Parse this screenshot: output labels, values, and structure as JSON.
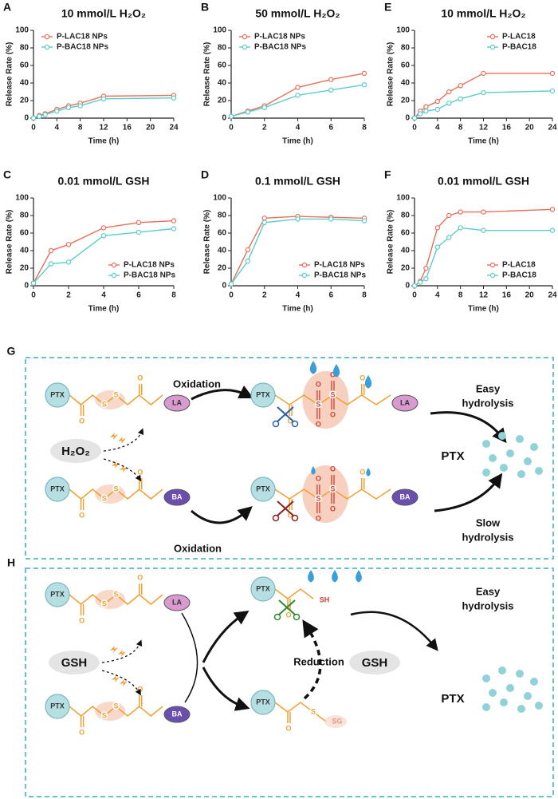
{
  "chart_data": [
    {
      "type": "line",
      "label": "A",
      "title": "10 mmol/L H₂O₂",
      "xlabel": "Time (h)",
      "ylabel": "Release Rate (%)",
      "x": [
        0,
        1,
        2,
        4,
        6,
        8,
        12,
        24
      ],
      "xlim": [
        0,
        24
      ],
      "xticks": [
        0,
        4,
        8,
        12,
        16,
        20,
        24
      ],
      "ylim": [
        0,
        100
      ],
      "yticks": [
        0,
        20,
        40,
        60,
        80,
        100
      ],
      "legend": "upper left",
      "series": [
        {
          "name": "P-LAC18 NPs",
          "color": "#e8705a",
          "values": [
            0,
            3,
            5,
            10,
            14,
            17,
            25,
            26
          ]
        },
        {
          "name": "P-BAC18 NPs",
          "color": "#5ccccc",
          "values": [
            0,
            2,
            4,
            8,
            12,
            14,
            22,
            23
          ]
        }
      ]
    },
    {
      "type": "line",
      "label": "B",
      "title": "50 mmol/L H₂O₂",
      "xlabel": "Time (h)",
      "ylabel": "Release Rate (%)",
      "x": [
        0,
        1,
        2,
        4,
        6,
        8
      ],
      "xlim": [
        0,
        8
      ],
      "xticks": [
        0,
        2,
        4,
        6,
        8
      ],
      "ylim": [
        0,
        100
      ],
      "yticks": [
        0,
        20,
        40,
        60,
        80,
        100
      ],
      "legend": "upper left",
      "series": [
        {
          "name": "P-LAC18 NPs",
          "color": "#e8705a",
          "values": [
            2,
            8,
            14,
            35,
            44,
            51
          ]
        },
        {
          "name": "P-BAC18 NPs",
          "color": "#5ccccc",
          "values": [
            2,
            7,
            12,
            26,
            32,
            38
          ]
        }
      ]
    },
    {
      "type": "line",
      "label": "E",
      "title": "10 mmol/L H₂O₂",
      "xlabel": "Time (h)",
      "ylabel": "Release Rate (%)",
      "x": [
        0,
        1,
        2,
        4,
        6,
        8,
        12,
        24
      ],
      "xlim": [
        0,
        24
      ],
      "xticks": [
        0,
        4,
        8,
        12,
        16,
        20,
        24
      ],
      "ylim": [
        0,
        100
      ],
      "yticks": [
        0,
        20,
        40,
        60,
        80,
        100
      ],
      "legend": "upper right",
      "series": [
        {
          "name": "P-LAC18",
          "color": "#e8705a",
          "values": [
            0,
            8,
            13,
            19,
            30,
            37,
            51,
            51
          ]
        },
        {
          "name": "P-BAC18",
          "color": "#5ccccc",
          "values": [
            0,
            5,
            8,
            10,
            17,
            22,
            29,
            31
          ]
        }
      ]
    },
    {
      "type": "line",
      "label": "C",
      "title": "0.01 mmol/L GSH",
      "xlabel": "Time (h)",
      "ylabel": "Release Rate (%)",
      "x": [
        0,
        1,
        2,
        4,
        6,
        8
      ],
      "xlim": [
        0,
        8
      ],
      "xticks": [
        0,
        2,
        4,
        6,
        8
      ],
      "ylim": [
        0,
        100
      ],
      "yticks": [
        0,
        20,
        40,
        60,
        80,
        100
      ],
      "legend": "lower right",
      "series": [
        {
          "name": "P-LAC18 NPs",
          "color": "#e8705a",
          "values": [
            3,
            40,
            47,
            66,
            72,
            74
          ]
        },
        {
          "name": "P-BAC18 NPs",
          "color": "#5ccccc",
          "values": [
            3,
            25,
            27,
            57,
            61,
            65
          ]
        }
      ]
    },
    {
      "type": "line",
      "label": "D",
      "title": "0.1 mmol/L GSH",
      "xlabel": "Time (h)",
      "ylabel": "Release Rate (%)",
      "x": [
        0,
        1,
        2,
        4,
        6,
        8
      ],
      "xlim": [
        0,
        8
      ],
      "xticks": [
        0,
        2,
        4,
        6,
        8
      ],
      "ylim": [
        0,
        100
      ],
      "yticks": [
        0,
        20,
        40,
        60,
        80,
        100
      ],
      "legend": "lower right",
      "series": [
        {
          "name": "P-LAC18 NPs",
          "color": "#e8705a",
          "values": [
            2,
            41,
            77,
            79,
            78,
            77
          ]
        },
        {
          "name": "P-BAC18 NPs",
          "color": "#5ccccc",
          "values": [
            2,
            28,
            72,
            76,
            76,
            74
          ]
        }
      ]
    },
    {
      "type": "line",
      "label": "F",
      "title": "0.01 mmol/L GSH",
      "xlabel": "Time (h)",
      "ylabel": "Release Rate (%)",
      "x": [
        0,
        1,
        2,
        4,
        6,
        8,
        12,
        24
      ],
      "xlim": [
        0,
        24
      ],
      "xticks": [
        0,
        4,
        8,
        12,
        16,
        20,
        24
      ],
      "ylim": [
        0,
        100
      ],
      "yticks": [
        0,
        20,
        40,
        60,
        80,
        100
      ],
      "legend": "lower right",
      "series": [
        {
          "name": "P-LAC18",
          "color": "#e8705a",
          "values": [
            0,
            5,
            20,
            66,
            80,
            84,
            84,
            87
          ]
        },
        {
          "name": "P-BAC18",
          "color": "#5ccccc",
          "values": [
            0,
            4,
            8,
            44,
            55,
            66,
            63,
            63
          ]
        }
      ]
    }
  ],
  "schemes": {
    "atoms": {
      "S": "S",
      "O": "O"
    },
    "G": {
      "label": "G",
      "oxidation": "Oxidation",
      "h2o2": "H₂O₂",
      "ptx": "PTX",
      "la": "LA",
      "ba": "BA",
      "easy": [
        "Easy",
        "hydrolysis"
      ],
      "slow": [
        "Slow",
        "hydrolysis"
      ]
    },
    "H": {
      "label": "H",
      "gsh": "GSH",
      "reduction": "Reduction",
      "ptx": "PTX",
      "la": "LA",
      "ba": "BA",
      "sh": "SH",
      "sg": "SG",
      "easy": [
        "Easy",
        "hydrolysis"
      ]
    }
  }
}
